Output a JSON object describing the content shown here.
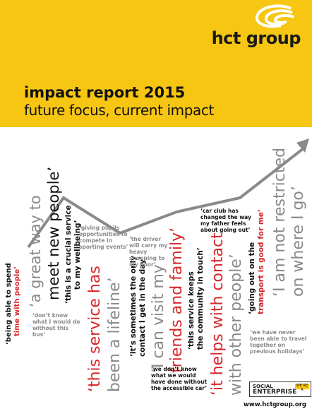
{
  "brand": {
    "logo_text": "hct group",
    "website": "www.hctgroup.org"
  },
  "report": {
    "title": "impact report 2015",
    "subtitle": "future focus, current impact"
  },
  "quotes": {
    "q1a": "‘being able to spend",
    "q1b": "time with people’",
    "q2": "‘a great way to",
    "q3": "meet new people’",
    "q4": "‘don’t know what I would do without this bus’",
    "q5a": "‘this is a crucial service",
    "q5b": "to my wellbeing’",
    "q6": "‘this service has",
    "q7": "been a lifeline’",
    "q8": "‘giving pupils opportunities to compete in sporting events’",
    "q9a": "‘it’s sometimes the only",
    "q9b": "contact I get in the day’",
    "q10": "‘I can visit my",
    "q11": "friends and family’",
    "q12": "‘the driver will carry my heavy shopping to my door’",
    "q13": "‘we don’t know what we would have done without the accessible car’",
    "q14a": "‘this service keeps",
    "q14b": "the community in touch’",
    "q15": "‘it helps with contact",
    "q16": "with other people’",
    "q17": "‘car club has changed the way my father feels about going out’",
    "q18a": "‘going out on the",
    "q18b": "transport is good for me’",
    "q19": "‘I am not restricted",
    "q20": "on where I go’",
    "q21": "‘we have never been able to travel together on previous holidays’"
  },
  "social_enterprise": {
    "line1": "SOCIAL",
    "line2": "ENTERPRISE",
    "badge": "WE’RE A"
  },
  "colors": {
    "yellow": "#f6c612",
    "red": "#d8262a",
    "grey": "#8a8a8a",
    "dark": "#111111"
  }
}
